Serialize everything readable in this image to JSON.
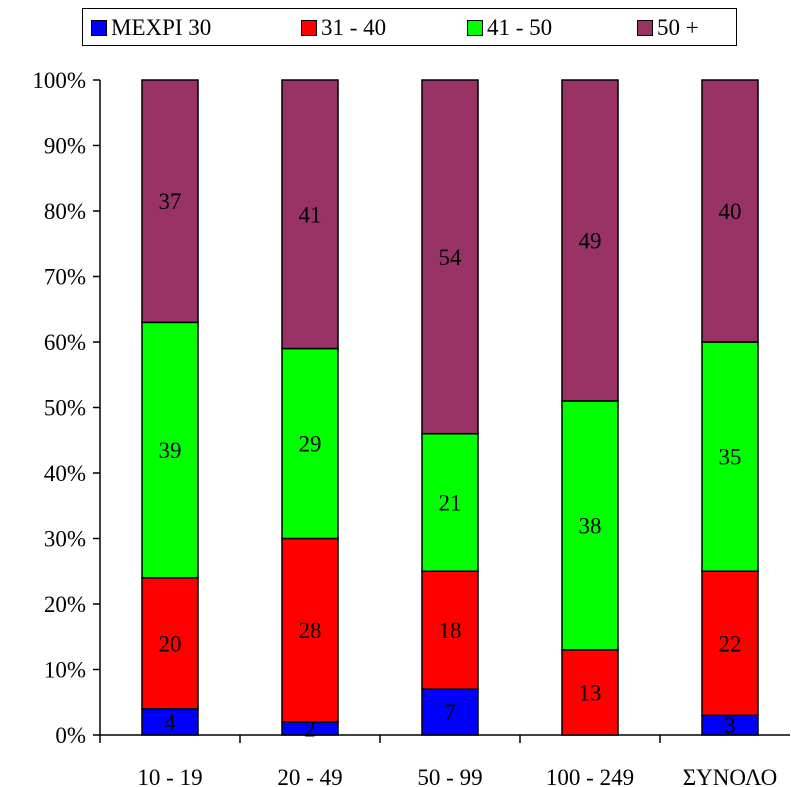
{
  "chart_data": {
    "type": "bar",
    "stacked": true,
    "percent_stacked": true,
    "categories": [
      "10 - 19",
      "20 - 49",
      "50 - 99",
      "100 - 249",
      "ΣΥΝΟΛΟ"
    ],
    "series": [
      {
        "name": "ΜΕΧΡΙ 30",
        "color": "#0000ff",
        "values": [
          4,
          2,
          7,
          0,
          3
        ],
        "labels": [
          "4",
          "2",
          "7",
          "",
          "3"
        ]
      },
      {
        "name": "31 - 40",
        "color": "#ff0000",
        "values": [
          20,
          28,
          18,
          13,
          22
        ],
        "labels": [
          "20",
          "28",
          "18",
          "13",
          "22"
        ]
      },
      {
        "name": "41 - 50",
        "color": "#00ff00",
        "values": [
          39,
          29,
          21,
          38,
          35
        ],
        "labels": [
          "39",
          "29",
          "21",
          "38",
          "35"
        ]
      },
      {
        "name": "50 +",
        "color": "#993366",
        "values": [
          37,
          41,
          54,
          49,
          40
        ],
        "labels": [
          "37",
          "41",
          "54",
          "49",
          "40"
        ]
      }
    ],
    "y_ticks": [
      "0%",
      "10%",
      "20%",
      "30%",
      "40%",
      "50%",
      "60%",
      "70%",
      "80%",
      "90%",
      "100%"
    ],
    "ylim": [
      0,
      100
    ],
    "grid": false,
    "legend_position": "top"
  }
}
